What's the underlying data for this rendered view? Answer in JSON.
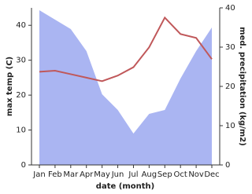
{
  "chart_data": {
    "type": "line",
    "x_label": "date (month)",
    "y_label": "max temp (C)",
    "y2_label": "med. precipitation (kg/m2)",
    "categories": [
      "Jan",
      "Feb",
      "Mar",
      "Apr",
      "May",
      "Jun",
      "Jul",
      "Aug",
      "Sep",
      "Oct",
      "Nov",
      "Dec"
    ],
    "series": [
      {
        "name": "med. precipitation (kg/m2)",
        "style": "area",
        "axis": "y2",
        "color": "#aab5f2",
        "values": [
          39.4,
          37,
          34.6,
          29,
          18,
          14,
          8,
          13,
          14,
          22,
          29,
          35
        ]
      },
      {
        "name": "max temp (C)",
        "style": "line",
        "color": "#c0585a",
        "values": [
          26.7,
          27,
          26,
          25,
          24,
          25.6,
          28,
          33.7,
          42.2,
          37.5,
          36.4,
          30.3
        ]
      }
    ],
    "ylim": [
      0,
      45
    ],
    "yticks": [
      0,
      10,
      20,
      30,
      40
    ],
    "y2lim": [
      0,
      40
    ],
    "y2ticks": [
      0,
      10,
      20,
      30,
      40
    ]
  }
}
